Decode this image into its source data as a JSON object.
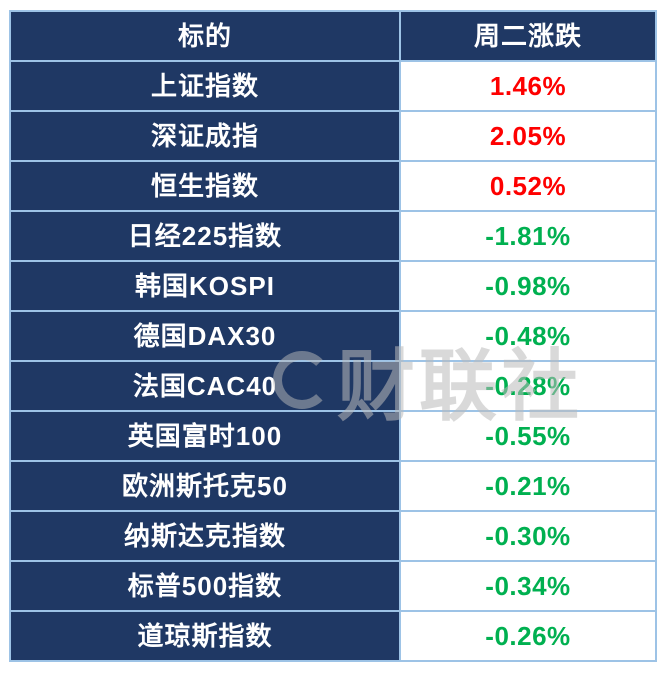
{
  "chart_data": {
    "type": "table",
    "title": "",
    "columns": [
      "标的",
      "周二涨跌"
    ],
    "rows": [
      {
        "label": "上证指数",
        "change": "1.46%"
      },
      {
        "label": "深证成指",
        "change": "2.05%"
      },
      {
        "label": "恒生指数",
        "change": "0.52%"
      },
      {
        "label": "日经225指数",
        "change": "-1.81%"
      },
      {
        "label": "韩国KOSPI",
        "change": "-0.98%"
      },
      {
        "label": "德国DAX30",
        "change": "-0.48%"
      },
      {
        "label": "法国CAC40",
        "change": "-0.28%"
      },
      {
        "label": "英国富时100",
        "change": "-0.55%"
      },
      {
        "label": "欧洲斯托克50",
        "change": "-0.21%"
      },
      {
        "label": "纳斯达克指数",
        "change": "-0.30%"
      },
      {
        "label": "标普500指数",
        "change": "-0.34%"
      },
      {
        "label": "道琼斯指数",
        "change": "-0.26%"
      }
    ]
  },
  "watermark": {
    "text": "财联社"
  },
  "colors": {
    "header_bg": "#1f3864",
    "label_bg": "#1f3864",
    "border": "#9dc3e6",
    "positive": "#fe0000",
    "negative": "#00b050",
    "header_text": "#ffffff"
  }
}
